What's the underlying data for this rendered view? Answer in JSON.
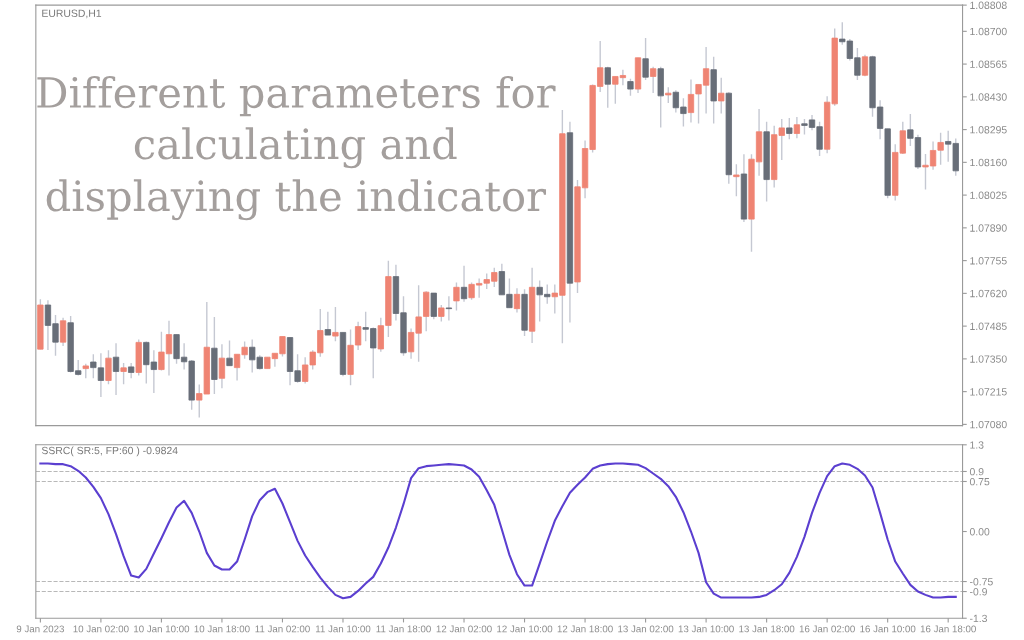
{
  "chart_data": [
    {
      "type": "candlestick",
      "title": "EURUSD,H1",
      "annotations": [
        "Different parameters for\ncalculating and\ndisplaying the indicator"
      ],
      "categories": [
        null,
        null,
        null,
        null,
        null,
        null,
        null,
        null,
        null,
        null,
        null,
        null,
        null,
        null,
        null,
        null,
        null,
        null,
        null,
        null,
        null,
        null,
        null,
        null,
        null,
        null,
        null,
        null,
        null,
        null,
        null,
        null,
        null,
        null,
        null,
        null,
        null,
        null,
        null,
        null,
        null,
        null,
        null,
        null,
        null,
        null,
        null,
        null,
        null,
        null,
        null,
        null,
        null,
        null,
        null,
        null,
        null,
        null,
        null,
        null,
        null,
        null,
        null,
        null,
        null,
        null,
        null,
        null,
        null,
        null,
        null,
        null,
        null,
        null,
        null,
        null,
        null,
        null,
        null,
        null,
        null,
        null,
        null,
        null,
        null,
        null,
        null,
        null,
        null,
        null,
        null,
        null,
        null,
        null,
        null,
        null,
        null,
        null,
        null,
        null,
        null,
        null,
        null,
        null,
        null,
        null,
        null,
        null,
        null,
        null,
        null,
        null,
        null,
        null,
        null,
        null,
        null,
        null,
        null,
        null,
        null,
        null
      ],
      "ohlc": [
        [
          1.0739,
          1.07596,
          1.0739,
          1.07572
        ],
        [
          1.07572,
          1.07592,
          1.07387,
          1.07488
        ],
        [
          1.07495,
          1.07531,
          1.07363,
          1.07419
        ],
        [
          1.07419,
          1.07519,
          1.07403,
          1.07507
        ],
        [
          1.07499,
          1.07527,
          1.07294,
          1.07298
        ],
        [
          1.07301,
          1.07345,
          1.07282,
          1.07286
        ],
        [
          1.0731,
          1.0733,
          1.0727,
          1.07321
        ],
        [
          1.07337,
          1.07369,
          1.0727,
          1.07314
        ],
        [
          1.07313,
          1.07373,
          1.07193,
          1.07261
        ],
        [
          1.07261,
          1.07386,
          1.07245,
          1.07353
        ],
        [
          1.07357,
          1.07414,
          1.07201,
          1.07298
        ],
        [
          1.07298,
          1.07333,
          1.07245,
          1.07313
        ],
        [
          1.07317,
          1.07333,
          1.0727,
          1.07294
        ],
        [
          1.07294,
          1.0743,
          1.07282,
          1.07418
        ],
        [
          1.07418,
          1.07422,
          1.07249,
          1.07326
        ],
        [
          1.07337,
          1.07386,
          1.07209,
          1.07306
        ],
        [
          1.07306,
          1.07462,
          1.07302,
          1.07378
        ],
        [
          1.07371,
          1.07507,
          1.07282,
          1.0745
        ],
        [
          1.0745,
          1.0745,
          1.0733,
          1.07351
        ],
        [
          1.07357,
          1.07414,
          1.07306,
          1.07338
        ],
        [
          1.07341,
          1.07345,
          1.0714,
          1.0718
        ],
        [
          1.0718,
          1.07244,
          1.07108,
          1.07207
        ],
        [
          1.07205,
          1.07584,
          1.07205,
          1.07398
        ],
        [
          1.07394,
          1.07523,
          1.07205,
          1.07265
        ],
        [
          1.0727,
          1.0741,
          1.07229,
          1.07353
        ],
        [
          1.07353,
          1.07426,
          1.07322,
          1.07322
        ],
        [
          1.07314,
          1.07369,
          1.07261,
          1.07369
        ],
        [
          1.07367,
          1.07422,
          1.07351,
          1.07398
        ],
        [
          1.07398,
          1.0743,
          1.07294,
          1.07346
        ],
        [
          1.07357,
          1.07365,
          1.07306,
          1.0731
        ],
        [
          1.0731,
          1.07357,
          1.0731,
          1.07357
        ],
        [
          1.07351,
          1.07373,
          1.07318,
          1.07373
        ],
        [
          1.07371,
          1.07442,
          1.0736,
          1.07442
        ],
        [
          1.07438,
          1.07438,
          1.07241,
          1.07298
        ],
        [
          1.07301,
          1.07369,
          1.07252,
          1.07257
        ],
        [
          1.07257,
          1.07357,
          1.07249,
          1.07325
        ],
        [
          1.07325,
          1.07386,
          1.07306,
          1.07378
        ],
        [
          1.07375,
          1.07556,
          1.07359,
          1.07467
        ],
        [
          1.07471,
          1.07544,
          1.07448,
          1.07448
        ],
        [
          1.07444,
          1.07564,
          1.07423,
          1.07459
        ],
        [
          1.07459,
          1.07459,
          1.07278,
          1.07286
        ],
        [
          1.07286,
          1.07471,
          1.07241,
          1.07406
        ],
        [
          1.07407,
          1.07503,
          1.07387,
          1.07483
        ],
        [
          1.07479,
          1.07544,
          1.07423,
          1.07472
        ],
        [
          1.07475,
          1.07479,
          1.0727,
          1.07395
        ],
        [
          1.07391,
          1.07519,
          1.07379,
          1.07487
        ],
        [
          1.07488,
          1.07754,
          1.0744,
          1.07689
        ],
        [
          1.07689,
          1.07738,
          1.07508,
          1.07537
        ],
        [
          1.0754,
          1.07608,
          1.07363,
          1.07375
        ],
        [
          1.07379,
          1.07475,
          1.07351,
          1.07459
        ],
        [
          1.07456,
          1.07653,
          1.07338,
          1.07523
        ],
        [
          1.07525,
          1.07629,
          1.07464,
          1.07625
        ],
        [
          1.07621,
          1.07621,
          1.07513,
          1.07525
        ],
        [
          1.07525,
          1.07572,
          1.07504,
          1.0756
        ],
        [
          1.0756,
          1.07608,
          1.07508,
          1.07557
        ],
        [
          1.07589,
          1.07665,
          1.07549,
          1.07645
        ],
        [
          1.07645,
          1.07734,
          1.07585,
          1.07598
        ],
        [
          1.07602,
          1.07665,
          1.07594,
          1.07657
        ],
        [
          1.07654,
          1.07681,
          1.07602,
          1.07661
        ],
        [
          1.07662,
          1.07702,
          1.07638,
          1.07677
        ],
        [
          1.0767,
          1.07726,
          1.07646,
          1.07706
        ],
        [
          1.0771,
          1.07742,
          1.07614,
          1.07614
        ],
        [
          1.07616,
          1.07681,
          1.07561,
          1.07561
        ],
        [
          1.07557,
          1.07641,
          1.07541,
          1.07616
        ],
        [
          1.07616,
          1.07637,
          1.07444,
          1.07468
        ],
        [
          1.07464,
          1.07726,
          1.07415,
          1.07645
        ],
        [
          1.07645,
          1.07673,
          1.07504,
          1.07614
        ],
        [
          1.07616,
          1.07657,
          1.07577,
          1.07606
        ],
        [
          1.07606,
          1.07657,
          1.07537,
          1.07621
        ],
        [
          1.07612,
          1.08376,
          1.07414,
          1.08278
        ],
        [
          1.08282,
          1.08327,
          1.075,
          1.07662
        ],
        [
          1.07667,
          1.08087,
          1.07622,
          1.08059
        ],
        [
          1.08055,
          1.0825,
          1.08012,
          1.08217
        ],
        [
          1.08213,
          1.08481,
          1.08201,
          1.08477
        ],
        [
          1.08473,
          1.0866,
          1.0845,
          1.0855
        ],
        [
          1.0855,
          1.08554,
          1.08385,
          1.08482
        ],
        [
          1.08482,
          1.08514,
          1.08401,
          1.08514
        ],
        [
          1.08509,
          1.08542,
          1.08478,
          1.08518
        ],
        [
          1.08493,
          1.08505,
          1.08434,
          1.08462
        ],
        [
          1.08462,
          1.08591,
          1.08446,
          1.08591
        ],
        [
          1.08587,
          1.08672,
          1.08499,
          1.08511
        ],
        [
          1.08514,
          1.08554,
          1.08446,
          1.08546
        ],
        [
          1.08546,
          1.08554,
          1.08304,
          1.08434
        ],
        [
          1.08438,
          1.08469,
          1.08405,
          1.08445
        ],
        [
          1.08449,
          1.08457,
          1.08365,
          1.08385
        ],
        [
          1.08388,
          1.08424,
          1.08308,
          1.08361
        ],
        [
          1.08365,
          1.08501,
          1.08324,
          1.0844
        ],
        [
          1.08442,
          1.08481,
          1.0832,
          1.08481
        ],
        [
          1.08478,
          1.08635,
          1.08361,
          1.08546
        ],
        [
          1.08542,
          1.08595,
          1.0832,
          1.08413
        ],
        [
          1.08413,
          1.08509,
          1.08361,
          1.08445
        ],
        [
          1.08445,
          1.08449,
          1.08072,
          1.08109
        ],
        [
          1.08101,
          1.08152,
          1.0802,
          1.08108
        ],
        [
          1.08112,
          1.08193,
          1.07914,
          1.07926
        ],
        [
          1.07926,
          1.08193,
          1.07792,
          1.08173
        ],
        [
          1.08162,
          1.0838,
          1.08105,
          1.08286
        ],
        [
          1.08286,
          1.08327,
          1.07999,
          1.08089
        ],
        [
          1.08089,
          1.08311,
          1.08056,
          1.08274
        ],
        [
          1.08271,
          1.08339,
          1.0817,
          1.08302
        ],
        [
          1.08302,
          1.08343,
          1.08255,
          1.08279
        ],
        [
          1.08279,
          1.08347,
          1.08259,
          1.08315
        ],
        [
          1.08319,
          1.08339,
          1.08275,
          1.08312
        ],
        [
          1.08335,
          1.08355,
          1.08292,
          1.08304
        ],
        [
          1.08307,
          1.08327,
          1.08186,
          1.08214
        ],
        [
          1.08214,
          1.08432,
          1.08198,
          1.08408
        ],
        [
          1.08401,
          1.08712,
          1.08393,
          1.08672
        ],
        [
          1.08668,
          1.08737,
          1.08645,
          1.08657
        ],
        [
          1.0866,
          1.08668,
          1.0858,
          1.08588
        ],
        [
          1.08591,
          1.08631,
          1.08499,
          1.08519
        ],
        [
          1.08519,
          1.08603,
          1.08515,
          1.08595
        ],
        [
          1.08595,
          1.08599,
          1.08348,
          1.08385
        ],
        [
          1.08388,
          1.08416,
          1.08255,
          1.083
        ],
        [
          1.08298,
          1.08298,
          1.08012,
          1.08024
        ],
        [
          1.08024,
          1.08235,
          1.08003,
          1.08201
        ],
        [
          1.08198,
          1.08327,
          1.08194,
          1.0829
        ],
        [
          1.08294,
          1.08359,
          1.08227,
          1.08259
        ],
        [
          1.08262,
          1.08274,
          1.08133,
          1.08141
        ],
        [
          1.08141,
          1.08194,
          1.08048,
          1.08148
        ],
        [
          1.08145,
          1.08246,
          1.08129,
          1.08209
        ],
        [
          1.0821,
          1.08282,
          1.0815,
          1.08242
        ],
        [
          1.08246,
          1.0829,
          1.08162,
          1.08235
        ],
        [
          1.08238,
          1.08258,
          1.08105,
          1.08125
        ]
      ],
      "colors": [
        "#ef8473",
        "#686e78",
        "#686e78",
        "#ef8473",
        "#686e78",
        "#686e78",
        "#ef8473",
        "#686e78",
        "#686e78",
        "#ef8473",
        "#686e78",
        "#ef8473",
        "#686e78",
        "#ef8473",
        "#686e78",
        "#686e78",
        "#ef8473",
        "#ef8473",
        "#686e78",
        "#686e78",
        "#686e78",
        "#ef8473",
        "#ef8473",
        "#686e78",
        "#ef8473",
        "#686e78",
        "#ef8473",
        "#ef8473",
        "#686e78",
        "#686e78",
        "#ef8473",
        "#ef8473",
        "#ef8473",
        "#686e78",
        "#686e78",
        "#ef8473",
        "#ef8473",
        "#ef8473",
        "#686e78",
        "#ef8473",
        "#686e78",
        "#ef8473",
        "#ef8473",
        "#686e78",
        "#686e78",
        "#ef8473",
        "#ef8473",
        "#686e78",
        "#686e78",
        "#ef8473",
        "#ef8473",
        "#ef8473",
        "#686e78",
        "#ef8473",
        "#686e78",
        "#ef8473",
        "#686e78",
        "#ef8473",
        "#ef8473",
        "#ef8473",
        "#ef8473",
        "#686e78",
        "#686e78",
        "#ef8473",
        "#686e78",
        "#ef8473",
        "#686e78",
        "#686e78",
        "#ef8473",
        "#ef8473",
        "#686e78",
        "#ef8473",
        "#ef8473",
        "#ef8473",
        "#ef8473",
        "#686e78",
        "#ef8473",
        "#ef8473",
        "#686e78",
        "#ef8473",
        "#686e78",
        "#ef8473",
        "#686e78",
        "#ef8473",
        "#686e78",
        "#686e78",
        "#ef8473",
        "#ef8473",
        "#ef8473",
        "#686e78",
        "#ef8473",
        "#686e78",
        "#ef8473",
        "#686e78",
        "#ef8473",
        "#ef8473",
        "#686e78",
        "#ef8473",
        "#ef8473",
        "#686e78",
        "#ef8473",
        "#686e78",
        "#686e78",
        "#686e78",
        "#ef8473",
        "#ef8473",
        "#686e78",
        "#686e78",
        "#686e78",
        "#ef8473",
        "#686e78",
        "#686e78",
        "#686e78",
        "#ef8473",
        "#ef8473",
        "#686e78",
        "#686e78",
        "#ef8473",
        "#ef8473",
        "#ef8473",
        "#686e78",
        "#686e78"
      ],
      "ylim": [
        1.07075,
        1.08808
      ],
      "yticks": [
        {
          "value": 1.0708,
          "label": "1.07080"
        },
        {
          "value": 1.07215,
          "label": "1.07215"
        },
        {
          "value": 1.0735,
          "label": "1.07350"
        },
        {
          "value": 1.07485,
          "label": "1.07485"
        },
        {
          "value": 1.0762,
          "label": "1.07620"
        },
        {
          "value": 1.07755,
          "label": "1.07755"
        },
        {
          "value": 1.0789,
          "label": "1.07890"
        },
        {
          "value": 1.08025,
          "label": "1.08025"
        },
        {
          "value": 1.0816,
          "label": "1.08160"
        },
        {
          "value": 1.08295,
          "label": "1.08295"
        },
        {
          "value": 1.0843,
          "label": "1.08430"
        },
        {
          "value": 1.08565,
          "label": "1.08565"
        },
        {
          "value": 1.087,
          "label": "1.08700"
        },
        {
          "value": 1.08808,
          "label": "1.08808"
        }
      ],
      "tick_labels": "y",
      "grid": false
    },
    {
      "type": "line",
      "title": "SSRC( SR:5, FP:60 ) -0.9824",
      "categories": [
        "9 Jan 2023",
        null,
        null,
        null,
        null,
        null,
        null,
        null,
        "10 Jan 02:00",
        null,
        null,
        null,
        null,
        null,
        null,
        null,
        "10 Jan 10:00",
        null,
        null,
        null,
        null,
        null,
        null,
        null,
        "10 Jan 18:00",
        null,
        null,
        null,
        null,
        null,
        null,
        null,
        "11 Jan 02:00",
        null,
        null,
        null,
        null,
        null,
        null,
        null,
        "11 Jan 10:00",
        null,
        null,
        null,
        null,
        null,
        null,
        null,
        "11 Jan 18:00",
        null,
        null,
        null,
        null,
        null,
        null,
        null,
        "12 Jan 02:00",
        null,
        null,
        null,
        null,
        null,
        null,
        null,
        "12 Jan 10:00",
        null,
        null,
        null,
        null,
        null,
        null,
        null,
        "12 Jan 18:00",
        null,
        null,
        null,
        null,
        null,
        null,
        null,
        "13 Jan 02:00",
        null,
        null,
        null,
        null,
        null,
        null,
        null,
        "13 Jan 10:00",
        null,
        null,
        null,
        null,
        null,
        null,
        null,
        "13 Jan 18:00",
        null,
        null,
        null,
        null,
        null,
        null,
        null,
        "16 Jan 02:00",
        null,
        null,
        null,
        null,
        null,
        null,
        null,
        "16 Jan 10:00",
        null,
        null,
        null,
        null,
        null,
        null,
        null,
        "16 Jan 18:00",
        null
      ],
      "series": [
        {
          "color": "#5b3fd0",
          "values": [
            1.02,
            1.02,
            1.01,
            1.01,
            0.98,
            0.91,
            0.81,
            0.67,
            0.5,
            0.26,
            -0.04,
            -0.37,
            -0.66,
            -0.69,
            -0.56,
            -0.33,
            -0.1,
            0.14,
            0.36,
            0.46,
            0.28,
            0.0,
            -0.32,
            -0.51,
            -0.57,
            -0.57,
            -0.45,
            -0.12,
            0.23,
            0.47,
            0.59,
            0.64,
            0.42,
            0.14,
            -0.14,
            -0.36,
            -0.53,
            -0.69,
            -0.83,
            -0.95,
            -1.0,
            -0.98,
            -0.89,
            -0.78,
            -0.68,
            -0.48,
            -0.24,
            0.06,
            0.41,
            0.8,
            0.95,
            0.98,
            0.99,
            1.0,
            1.01,
            1.0,
            0.99,
            0.93,
            0.82,
            0.62,
            0.4,
            0.03,
            -0.35,
            -0.64,
            -0.81,
            -0.81,
            -0.48,
            -0.15,
            0.16,
            0.38,
            0.58,
            0.7,
            0.81,
            0.94,
            0.99,
            1.01,
            1.02,
            1.02,
            1.01,
            1.0,
            0.95,
            0.87,
            0.79,
            0.68,
            0.52,
            0.29,
            0.0,
            -0.32,
            -0.76,
            -0.93,
            -0.99,
            -0.99,
            -0.99,
            -0.99,
            -0.99,
            -0.98,
            -0.95,
            -0.88,
            -0.79,
            -0.62,
            -0.38,
            -0.08,
            0.28,
            0.58,
            0.83,
            0.98,
            1.02,
            1.0,
            0.94,
            0.84,
            0.66,
            0.28,
            -0.12,
            -0.45,
            -0.63,
            -0.8,
            -0.9,
            -0.95,
            -0.99,
            -0.99,
            -0.98,
            -0.98
          ]
        }
      ],
      "ylim": [
        -1.3,
        1.3
      ],
      "yticks": [
        -1.3,
        -0.9,
        -0.75,
        {
          "value": 0,
          "label": "0.00"
        },
        0.75,
        0.9,
        1.3
      ],
      "ref_lines": [
        {
          "axis": "y",
          "value": 0.9,
          "color": "#b8b8b8",
          "line_style": "dashed"
        },
        {
          "axis": "y",
          "value": 0.75,
          "color": "#b8b8b8",
          "line_style": "dashed"
        },
        {
          "axis": "y",
          "value": -0.75,
          "color": "#b8b8b8",
          "line_style": "dashed"
        },
        {
          "axis": "y",
          "value": -0.9,
          "color": "#b8b8b8",
          "line_style": "dashed"
        }
      ],
      "grid": false
    }
  ]
}
